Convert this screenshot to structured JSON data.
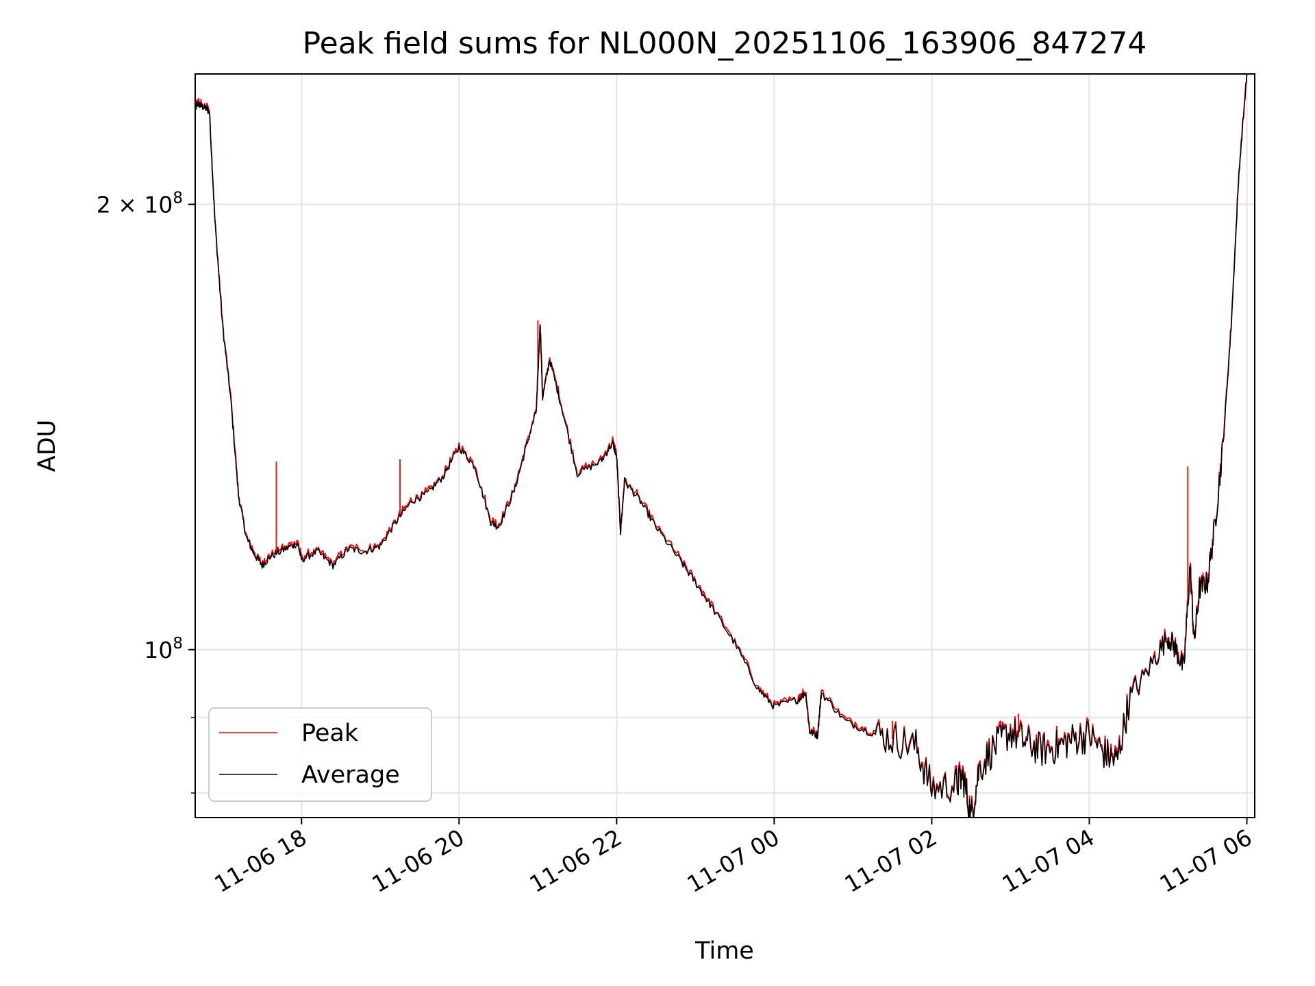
{
  "chart_data": {
    "type": "line",
    "title": "Peak field sums for NL000N_20251106_163906_847274",
    "xlabel": "Time",
    "ylabel": "ADU",
    "yscale": "log",
    "xlim_hours": [
      16.65,
      30.1
    ],
    "ylim": [
      77000000,
      245000000
    ],
    "x_ticks": [
      {
        "hour": 18,
        "label": "11-06 18"
      },
      {
        "hour": 20,
        "label": "11-06 20"
      },
      {
        "hour": 22,
        "label": "11-06 22"
      },
      {
        "hour": 24,
        "label": "11-07 00"
      },
      {
        "hour": 26,
        "label": "11-07 02"
      },
      {
        "hour": 28,
        "label": "11-07 04"
      },
      {
        "hour": 30,
        "label": "11-07 06"
      }
    ],
    "y_major_ticks": [
      {
        "value": 100000000,
        "mantissa": "10",
        "exponent": "8"
      },
      {
        "value": 200000000,
        "mantissa": "2 × 10",
        "exponent": "8"
      }
    ],
    "y_minor_ticks": [
      80000000,
      90000000
    ],
    "grid": true,
    "legend_position": "lower-left",
    "series": [
      {
        "name": "Peak",
        "color": "#ff0000",
        "spikes": [
          [
            17.68,
            134000000
          ],
          [
            19.25,
            134500000
          ],
          [
            21.0,
            167000000
          ],
          [
            29.25,
            133000000
          ],
          [
            27.1,
            90500000
          ],
          [
            25.5,
            89500000
          ]
        ]
      },
      {
        "name": "Average",
        "color": "#000000",
        "points": [
          [
            16.65,
            232000000
          ],
          [
            16.68,
            234000000
          ],
          [
            16.73,
            233000000
          ],
          [
            16.8,
            232000000
          ],
          [
            16.83,
            231000000
          ],
          [
            16.9,
            195000000
          ],
          [
            17.0,
            165000000
          ],
          [
            17.1,
            148000000
          ],
          [
            17.2,
            127000000
          ],
          [
            17.3,
            119000000
          ],
          [
            17.4,
            116000000
          ],
          [
            17.5,
            114000000
          ],
          [
            17.6,
            115500000
          ],
          [
            17.8,
            117000000
          ],
          [
            17.95,
            118000000
          ],
          [
            18.0,
            115000000
          ],
          [
            18.2,
            116500000
          ],
          [
            18.4,
            114000000
          ],
          [
            18.6,
            117000000
          ],
          [
            18.8,
            116500000
          ],
          [
            19.0,
            117500000
          ],
          [
            19.2,
            122000000
          ],
          [
            19.4,
            126000000
          ],
          [
            19.6,
            127500000
          ],
          [
            19.8,
            131000000
          ],
          [
            20.0,
            137000000
          ],
          [
            20.2,
            133000000
          ],
          [
            20.4,
            122000000
          ],
          [
            20.5,
            121000000
          ],
          [
            20.7,
            128000000
          ],
          [
            20.85,
            137000000
          ],
          [
            20.98,
            145000000
          ],
          [
            21.03,
            166000000
          ],
          [
            21.06,
            148000000
          ],
          [
            21.15,
            157000000
          ],
          [
            21.3,
            146000000
          ],
          [
            21.5,
            131500000
          ],
          [
            21.8,
            134000000
          ],
          [
            21.95,
            138000000
          ],
          [
            22.0,
            135000000
          ],
          [
            22.05,
            120000000
          ],
          [
            22.1,
            130000000
          ],
          [
            22.3,
            126000000
          ],
          [
            22.5,
            121000000
          ],
          [
            22.8,
            115000000
          ],
          [
            23.0,
            111000000
          ],
          [
            23.2,
            107000000
          ],
          [
            23.5,
            101000000
          ],
          [
            23.8,
            94000000
          ],
          [
            24.0,
            91500000
          ],
          [
            24.3,
            92500000
          ],
          [
            24.4,
            93500000
          ],
          [
            24.45,
            88000000
          ],
          [
            24.55,
            87500000
          ],
          [
            24.6,
            93500000
          ],
          [
            24.9,
            89500000
          ],
          [
            25.2,
            88000000
          ],
          [
            25.5,
            87000000
          ],
          [
            25.8,
            86000000
          ],
          [
            26.0,
            80500000
          ],
          [
            26.3,
            81000000
          ],
          [
            26.4,
            82000000
          ],
          [
            26.5,
            77000000
          ],
          [
            26.6,
            83000000
          ],
          [
            26.8,
            86000000
          ],
          [
            27.0,
            88000000
          ],
          [
            27.2,
            86500000
          ],
          [
            27.4,
            85500000
          ],
          [
            27.6,
            86000000
          ],
          [
            27.8,
            87000000
          ],
          [
            28.0,
            87500000
          ],
          [
            28.2,
            85000000
          ],
          [
            28.35,
            84000000
          ],
          [
            28.5,
            92000000
          ],
          [
            28.8,
            98000000
          ],
          [
            29.0,
            102000000
          ],
          [
            29.1,
            100000000
          ],
          [
            29.2,
            97000000
          ],
          [
            29.28,
            114000000
          ],
          [
            29.33,
            101000000
          ],
          [
            29.4,
            110000000
          ],
          [
            29.5,
            111000000
          ],
          [
            29.6,
            122000000
          ],
          [
            29.7,
            138000000
          ],
          [
            29.8,
            165000000
          ],
          [
            29.9,
            210000000
          ],
          [
            30.0,
            245000000
          ]
        ]
      }
    ]
  }
}
